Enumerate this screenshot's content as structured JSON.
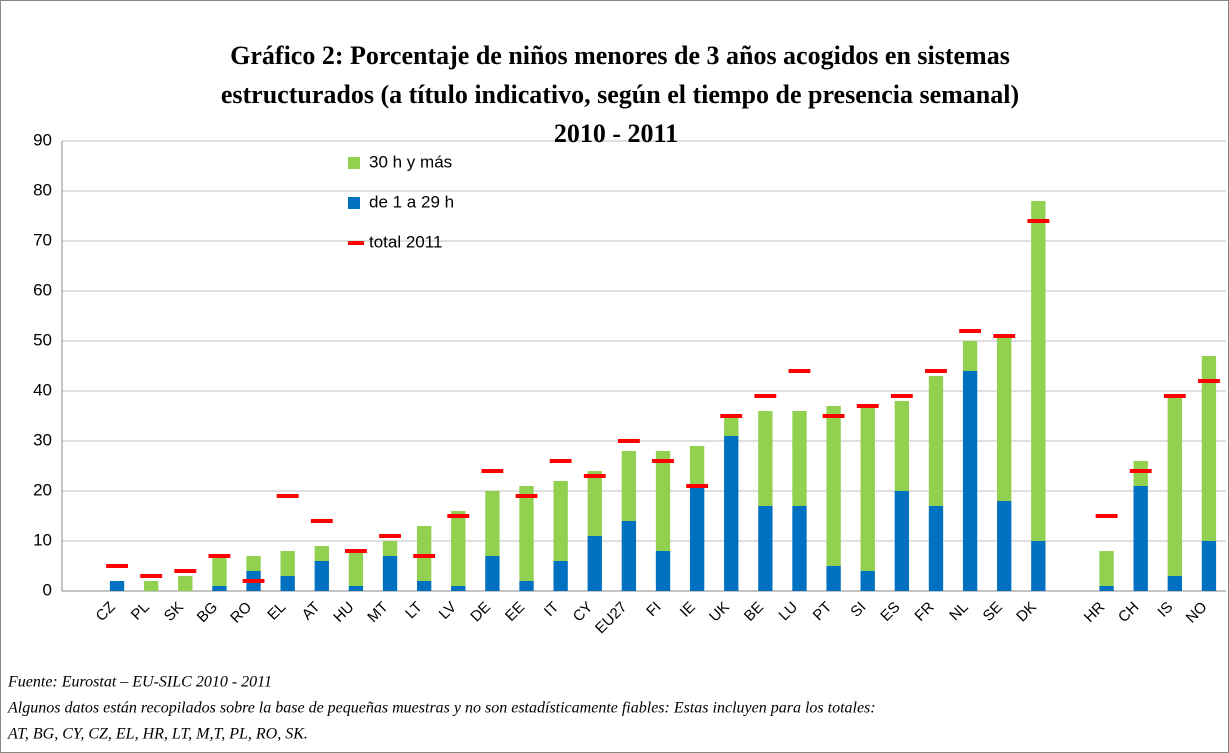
{
  "chart_data": {
    "type": "bar",
    "title": [
      "Gráfico 2: Porcentaje de niños menores de 3 años acogidos en sistemas",
      "estructurados (a título indicativo, según el tiempo de presencia semanal)",
      "2010 - 2011"
    ],
    "categories": [
      "CZ",
      "PL",
      "SK",
      "BG",
      "RO",
      "EL",
      "AT",
      "HU",
      "MT",
      "LT",
      "LV",
      "DE",
      "EE",
      "IT",
      "CY",
      "EU27",
      "FI",
      "IE",
      "UK",
      "BE",
      "LU",
      "PT",
      "SI",
      "ES",
      "FR",
      "NL",
      "SE",
      "DK",
      null,
      "HR",
      "CH",
      "IS",
      "NO"
    ],
    "series": [
      {
        "name": "30 h y más",
        "color": "#92d050",
        "values": [
          0,
          2,
          3,
          6,
          3,
          5,
          3,
          7,
          3,
          11,
          15,
          13,
          19,
          16,
          13,
          14,
          20,
          8,
          4,
          19,
          19,
          32,
          33,
          18,
          26,
          6,
          33,
          68,
          null,
          7,
          5,
          36,
          37
        ]
      },
      {
        "name": "de 1 a 29 h",
        "color": "#0070c0",
        "values": [
          2,
          0,
          0,
          1,
          4,
          3,
          6,
          1,
          7,
          2,
          1,
          7,
          2,
          6,
          11,
          14,
          8,
          21,
          31,
          17,
          17,
          5,
          4,
          20,
          17,
          44,
          18,
          10,
          null,
          1,
          21,
          3,
          10
        ]
      },
      {
        "name": "total 2011",
        "color": "#ff0000",
        "values": [
          5,
          3,
          4,
          7,
          2,
          19,
          14,
          8,
          11,
          7,
          15,
          24,
          19,
          26,
          23,
          30,
          26,
          21,
          35,
          39,
          44,
          35,
          37,
          39,
          44,
          52,
          51,
          74,
          null,
          15,
          24,
          39,
          42
        ]
      }
    ],
    "ylim": [
      0,
      90
    ],
    "yticks": [
      0,
      10,
      20,
      30,
      40,
      50,
      60,
      70,
      80,
      90
    ],
    "grid": true,
    "notes": [
      "Fuente: Eurostat – EU-SILC 2010 - 2011",
      "Algunos datos están recopilados sobre la base de pequeñas muestras y no son estadísticamente fiables: Estas incluyen para los totales:",
      "AT, BG, CY, CZ, EL, HR, LT, M,T, PL, RO, SK."
    ]
  }
}
